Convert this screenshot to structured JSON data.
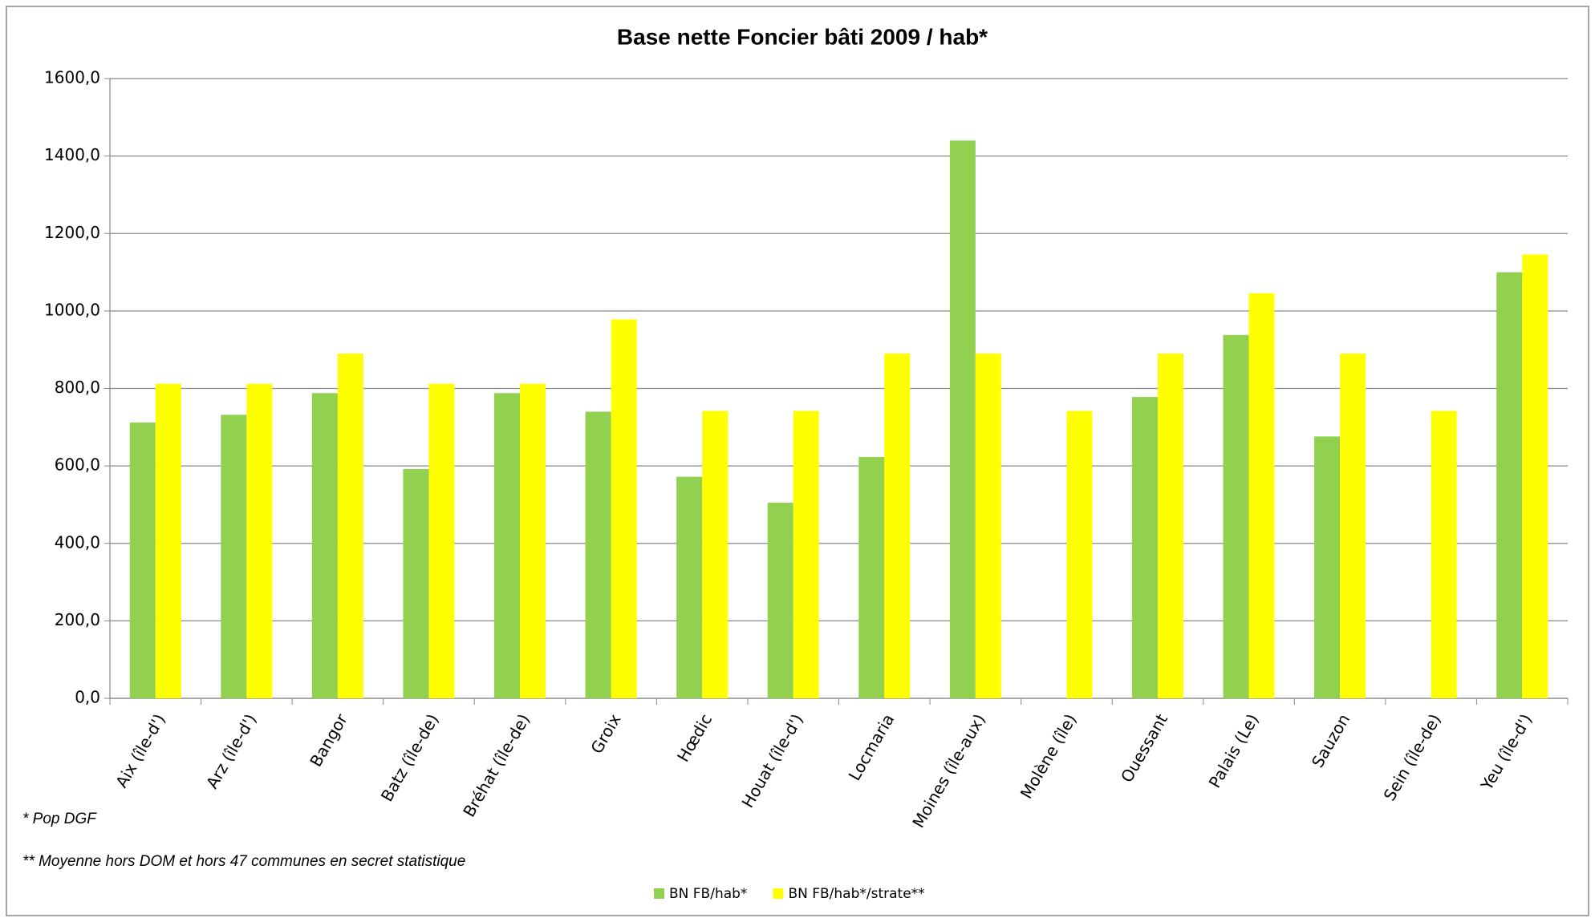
{
  "chart_data": {
    "type": "bar",
    "title": "Base nette Foncier bâti 2009 / hab*",
    "categories": [
      "Aix (île-d')",
      "Arz (île-d')",
      "Bangor",
      "Batz (île-de)",
      "Bréhat (île-de)",
      "Groix",
      "Hœdic",
      "Houat (île-d')",
      "Locmaria",
      "Moines (île-aux)",
      "Molène (île)",
      "Ouessant",
      "Palais (Le)",
      "Sauzon",
      "Sein (île-de)",
      "Yeu (île-d')"
    ],
    "series": [
      {
        "name": "BN FB/hab*",
        "color": "#92d050",
        "values": [
          712,
          732,
          788,
          592,
          788,
          740,
          572,
          505,
          623,
          1440,
          null,
          778,
          938,
          676,
          null,
          1100
        ]
      },
      {
        "name": "BN FB/hab*/strate**",
        "color": "#ffff00",
        "values": [
          812,
          812,
          890,
          812,
          812,
          978,
          742,
          742,
          890,
          890,
          742,
          890,
          1046,
          890,
          742,
          1146
        ]
      }
    ],
    "ylim": [
      0,
      1600
    ],
    "yticks": [
      {
        "value": 0,
        "label": "0,0"
      },
      {
        "value": 200,
        "label": "200,0"
      },
      {
        "value": 400,
        "label": "400,0"
      },
      {
        "value": 600,
        "label": "600,0"
      },
      {
        "value": 800,
        "label": "800,0"
      },
      {
        "value": 1000,
        "label": "1000,0"
      },
      {
        "value": 1200,
        "label": "1200,0"
      },
      {
        "value": 1400,
        "label": "1400,0"
      },
      {
        "value": 1600,
        "label": "1600,0"
      }
    ],
    "grid": true,
    "legend": "bottom",
    "annotations": [
      "* Pop    DGF",
      "** Moyenne hors DOM et hors 47 communes en secret statistique"
    ]
  }
}
